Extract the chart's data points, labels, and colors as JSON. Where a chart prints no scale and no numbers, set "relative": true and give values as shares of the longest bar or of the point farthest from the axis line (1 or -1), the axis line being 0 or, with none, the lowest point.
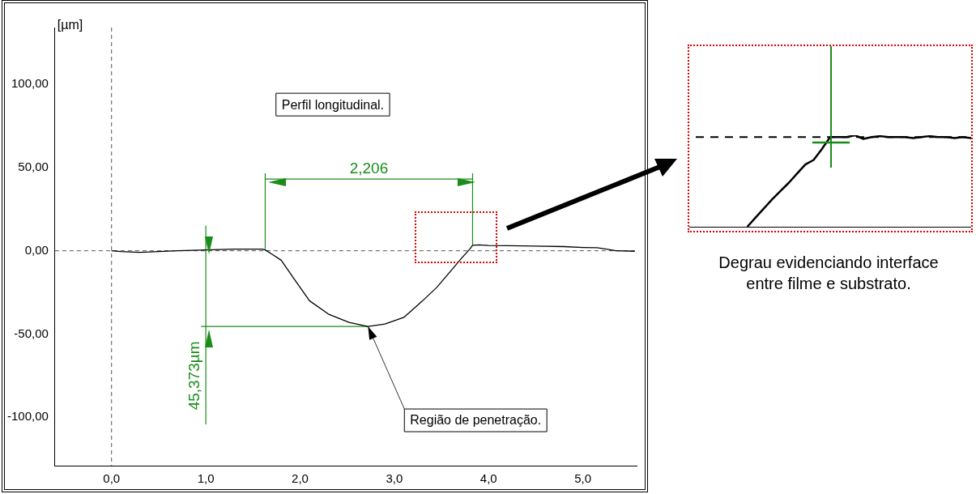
{
  "chart_data": [
    {
      "type": "line",
      "ylabel": "[µm]",
      "x": [
        0,
        0.1,
        0.3,
        0.5,
        0.7,
        1.0,
        1.3,
        1.6,
        1.63,
        1.7,
        1.8,
        1.95,
        2.1,
        2.3,
        2.52,
        2.72,
        2.9,
        3.1,
        3.3,
        3.45,
        3.6,
        3.72,
        3.8,
        3.83,
        3.9,
        4.0,
        4.2,
        4.5,
        4.8,
        5.0,
        5.15,
        5.25,
        5.35,
        5.55
      ],
      "series": [
        {
          "color": "#000000",
          "values": [
            0,
            -0.5,
            -1,
            -0.5,
            0,
            0.5,
            1,
            1,
            0.5,
            -2,
            -5.7,
            -18,
            -30,
            -38,
            -43,
            -45.4,
            -44,
            -40,
            -30,
            -22,
            -12,
            -4,
            1,
            3.3,
            3.5,
            3.2,
            3,
            2.8,
            2.5,
            2,
            1.8,
            1,
            0,
            -0.3
          ]
        },
        {
          "type": "line",
          "color": "#1a8c1a",
          "x": [
            1.63,
            1.63
          ],
          "values": [
            1,
            46.5
          ]
        },
        {
          "type": "line",
          "color": "#1a8c1a",
          "x": [
            3.83,
            3.83
          ],
          "values": [
            3.3,
            46.5
          ]
        },
        {
          "type": "line",
          "color": "#1a8c1a",
          "x": [
            1.63,
            3.83
          ],
          "values": [
            43,
            43
          ]
        },
        {
          "type": "line",
          "color": "#1a8c1a",
          "x": [
            1.0,
            1.0
          ],
          "values": [
            15,
            -104
          ]
        },
        {
          "type": "line",
          "color": "#1a8c1a",
          "x": [
            0.95,
            2.72
          ],
          "values": [
            -45.4,
            -45.4
          ]
        }
      ],
      "xlim": [
        -0.6,
        5.57
      ],
      "ylim": [
        -129,
        134
      ],
      "xticks": [
        {
          "value": 0,
          "label": "0,0"
        },
        {
          "value": 1,
          "label": "1,0"
        },
        {
          "value": 2,
          "label": "2,0"
        },
        {
          "value": 3,
          "label": "3,0"
        },
        {
          "value": 4,
          "label": "4,0"
        },
        {
          "value": 5,
          "label": "5,0"
        }
      ],
      "yticks": [
        {
          "value": -100,
          "label": "-100,00"
        },
        {
          "value": -50,
          "label": "-50,00"
        },
        {
          "value": 0,
          "label": "0,00"
        },
        {
          "value": 50,
          "label": "50,00"
        },
        {
          "value": 100,
          "label": "100,00"
        }
      ],
      "grid": false,
      "legend": false,
      "marker": "none",
      "line_style": "solid",
      "ref_lines": [
        {
          "axis": "y",
          "value": 0,
          "color": "#555555",
          "line_style": "dashed"
        },
        {
          "axis": "x",
          "value": 0,
          "color": "#555555",
          "line_style": "dashed"
        }
      ],
      "annotations": [
        "Perfil longitudinal.",
        {
          "text": "Região de penetração.",
          "x": 2.72,
          "y": -45.4
        },
        {
          "text": "2,206",
          "x": 2.73,
          "y": 43
        },
        {
          "text": "45,373µm",
          "x": 1.0,
          "y": -75
        }
      ]
    },
    {
      "type": "line",
      "relative": true,
      "categories": [
        null,
        null,
        null,
        null,
        null,
        null,
        null,
        null,
        null,
        null,
        null,
        null,
        null,
        null,
        null,
        null,
        null,
        null,
        null,
        null,
        null,
        null,
        null,
        null,
        null,
        null,
        null,
        null,
        null,
        null,
        null,
        null,
        null,
        null,
        null
      ],
      "series": [
        {
          "color": "#000000",
          "values": [
            null,
            null,
            null,
            null,
            null,
            null,
            null,
            0,
            0.1,
            0.2,
            0.3,
            0.39,
            0.48,
            0.58,
            0.68,
            0.73,
            0.85,
            0.98,
            0.98,
            0.98,
            1,
            0.96,
            0.98,
            0.99,
            0.98,
            0.98,
            0.98,
            0.97,
            0.98,
            0.99,
            0.98,
            0.98,
            0.97,
            0.98,
            0.97
          ]
        }
      ],
      "grid": false,
      "legend": false,
      "marker": "none",
      "line_style": "solid",
      "ref_lines": [
        {
          "axis": "y",
          "value": 0.98,
          "color": "#000000",
          "line_style": "dashed"
        }
      ],
      "annotations": [
        "Degrau evidenciando interface entre filme e substrato."
      ]
    }
  ]
}
